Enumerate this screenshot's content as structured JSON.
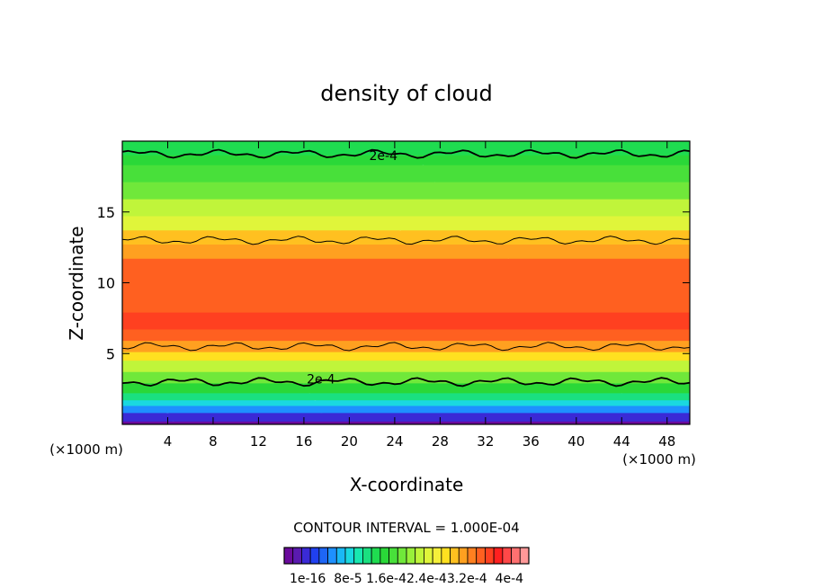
{
  "chart_data": {
    "type": "heatmap",
    "title": "density of cloud",
    "xlabel": "X-coordinate",
    "ylabel": "Z-coordinate",
    "x_unit_left": "(×1000 m)",
    "x_unit_right": "(×1000 m)",
    "x_ticks": [
      4,
      8,
      12,
      16,
      20,
      24,
      28,
      32,
      36,
      40,
      44,
      48
    ],
    "y_ticks": [
      5,
      10,
      15
    ],
    "xlim": [
      0,
      50
    ],
    "ylim": [
      0,
      20
    ],
    "contour_interval_text": "CONTOUR INTERVAL = 1.000E-04",
    "contour_labels": [
      {
        "text": "2e-4",
        "x": 23,
        "y": 19.0
      },
      {
        "text": "2e-4",
        "x": 17.5,
        "y": 3.2
      }
    ],
    "colorbar_labels": [
      "1e-16",
      "8e-5",
      "1.6e-4",
      "2.4e-4",
      "3.2e-4",
      "4e-4"
    ],
    "colorbar_text": "1e-16  8e-5 1.6e-42.4e-43.2e-4  4e-4",
    "colorbar_colors": [
      "#6a0a9c",
      "#5a1ab0",
      "#3a2ad6",
      "#2040f0",
      "#1e66f5",
      "#1e90ff",
      "#1ab8f5",
      "#1ad8e0",
      "#18e8b0",
      "#1ae080",
      "#1fdc50",
      "#2ad838",
      "#48e03a",
      "#70e83a",
      "#98f03a",
      "#c0f53a",
      "#e0f53a",
      "#f5f03a",
      "#ffe020",
      "#ffc020",
      "#ffa020",
      "#ff8020",
      "#ff6020",
      "#ff4020",
      "#ff2020",
      "#ff4848",
      "#ff7070",
      "#ff9898"
    ],
    "bands": [
      {
        "z": 0.5,
        "color": "#6a0a9c"
      },
      {
        "z": 1.1,
        "color": "#3a2ad6"
      },
      {
        "z": 1.6,
        "color": "#1e90ff"
      },
      {
        "z": 2.0,
        "color": "#1ad8e0"
      },
      {
        "z": 2.5,
        "color": "#1ae080"
      },
      {
        "z": 3.2,
        "color": "#2ad838"
      },
      {
        "z": 4.0,
        "color": "#70e83a"
      },
      {
        "z": 4.8,
        "color": "#c0f53a"
      },
      {
        "z": 5.4,
        "color": "#ffe020"
      },
      {
        "z": 6.2,
        "color": "#ffa020"
      },
      {
        "z": 7.0,
        "color": "#ff6020"
      },
      {
        "z": 8.2,
        "color": "#ff4020"
      },
      {
        "z": 12.0,
        "color": "#ff6020"
      },
      {
        "z": 13.0,
        "color": "#ffa020"
      },
      {
        "z": 14.0,
        "color": "#ffc020"
      },
      {
        "z": 15.0,
        "color": "#e0f53a"
      },
      {
        "z": 16.2,
        "color": "#c0f53a"
      },
      {
        "z": 17.4,
        "color": "#70e83a"
      },
      {
        "z": 18.6,
        "color": "#48e03a"
      },
      {
        "z": 19.3,
        "color": "#2ad838"
      },
      {
        "z": 20.0,
        "color": "#1fdc50"
      }
    ],
    "contour_lines": [
      {
        "z": 3.0,
        "width": 1.8
      },
      {
        "z": 5.5,
        "width": 1.0
      },
      {
        "z": 13.0,
        "width": 1.0
      },
      {
        "z": 19.1,
        "width": 1.8
      }
    ]
  }
}
